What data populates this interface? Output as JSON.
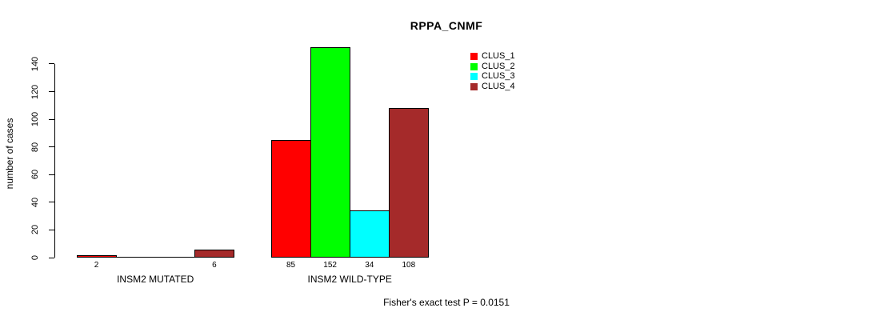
{
  "title": "RPPA_CNMF",
  "footer": "Fisher's exact test P = 0.0151",
  "chart_data": {
    "type": "bar",
    "title": "RPPA_CNMF",
    "xlabel": "",
    "ylabel": "number of cases",
    "categories": [
      "INSM2 MUTATED",
      "INSM2 WILD-TYPE"
    ],
    "series": [
      {
        "name": "CLUS_1",
        "color": "#ff0000",
        "values": [
          2,
          85
        ]
      },
      {
        "name": "CLUS_2",
        "color": "#00ff00",
        "values": [
          0,
          152
        ]
      },
      {
        "name": "CLUS_3",
        "color": "#00ffff",
        "values": [
          0,
          34
        ]
      },
      {
        "name": "CLUS_4",
        "color": "#a52a2a",
        "values": [
          6,
          108
        ]
      }
    ],
    "bar_value_labels": [
      [
        "2",
        "",
        "",
        "6"
      ],
      [
        "85",
        "152",
        "34",
        "108"
      ]
    ],
    "yticks": [
      0,
      20,
      40,
      60,
      80,
      100,
      120,
      140
    ],
    "ylim": [
      0,
      152
    ],
    "grid": false,
    "legend_position": "top-right",
    "legend_entries": [
      "CLUS_1",
      "CLUS_2",
      "CLUS_3",
      "CLUS_4"
    ],
    "annotation": "Fisher's exact test P = 0.0151"
  }
}
